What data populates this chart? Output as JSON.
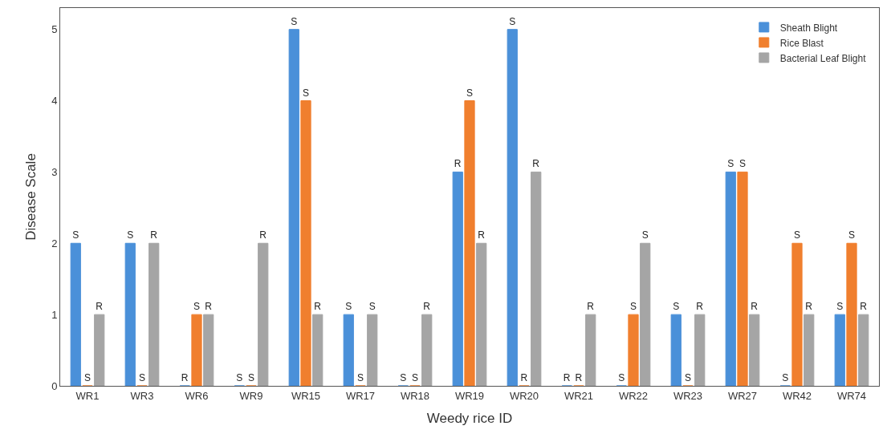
{
  "chart_data": {
    "type": "bar",
    "xlabel": "Weedy rice ID",
    "ylabel": "Disease Scale",
    "categories": [
      "WR1",
      "WR3",
      "WR6",
      "WR9",
      "WR15",
      "WR17",
      "WR18",
      "WR19",
      "WR20",
      "WR21",
      "WR22",
      "WR23",
      "WR27",
      "WR42",
      "WR74"
    ],
    "series": [
      {
        "name": "Sheath Blight",
        "color": "#4a90d9",
        "values": [
          2,
          2,
          0,
          0,
          5,
          1,
          0,
          3,
          5,
          0,
          0,
          1,
          3,
          0,
          1
        ],
        "value_labels": [
          "S",
          "S",
          "R",
          "S",
          "S",
          "S",
          "S",
          "R",
          "S",
          "R",
          "S",
          "S",
          "S",
          "S",
          "S"
        ]
      },
      {
        "name": "Rice Blast",
        "color": "#f07f2e",
        "values": [
          0,
          0,
          1,
          0,
          4,
          0,
          0,
          4,
          0,
          0,
          1,
          0,
          3,
          2,
          2
        ],
        "value_labels": [
          "S",
          "S",
          "S",
          "S",
          "S",
          "S",
          "S",
          "S",
          "R",
          "R",
          "S",
          "S",
          "S",
          "S",
          "S"
        ]
      },
      {
        "name": "Bacterial Leaf Blight",
        "color": "#a5a5a5",
        "values": [
          1,
          2,
          1,
          2,
          1,
          1,
          1,
          2,
          3,
          1,
          2,
          1,
          1,
          1,
          1
        ],
        "value_labels": [
          "R",
          "R",
          "R",
          "R",
          "R",
          "S",
          "R",
          "R",
          "R",
          "R",
          "S",
          "R",
          "R",
          "R",
          "R"
        ]
      }
    ],
    "ylim": [
      0,
      5.3
    ],
    "yticks": [
      0,
      1,
      2,
      3,
      4,
      5
    ],
    "legend": "top right"
  }
}
